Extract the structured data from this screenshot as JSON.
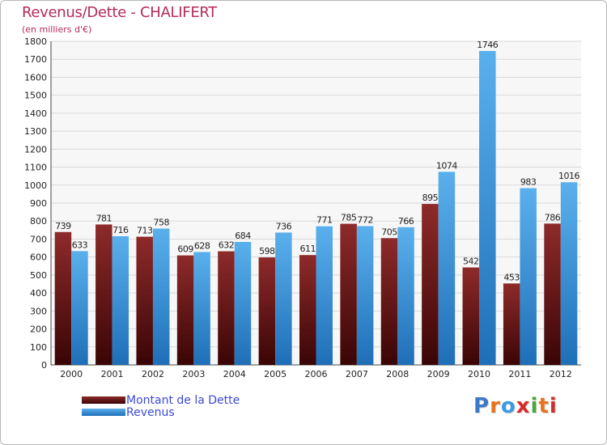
{
  "chart_data": {
    "type": "bar",
    "title": "Revenus/Dette - CHALIFERT",
    "subtitle": "(en milliers d'€)",
    "categories": [
      "2000",
      "2001",
      "2002",
      "2003",
      "2004",
      "2005",
      "2006",
      "2007",
      "2008",
      "2009",
      "2010",
      "2011",
      "2012"
    ],
    "series": [
      {
        "name": "Montant de la Dette",
        "color": "#7a1b1b",
        "values": [
          739,
          781,
          713,
          609,
          632,
          598,
          611,
          785,
          705,
          895,
          542,
          453,
          786
        ]
      },
      {
        "name": "Revenus",
        "color": "#3a9be0",
        "values": [
          633,
          716,
          758,
          628,
          684,
          736,
          771,
          772,
          766,
          1074,
          1746,
          983,
          1016
        ]
      }
    ],
    "ylim": [
      0,
      1800
    ],
    "ytick_step": 100,
    "grid": true,
    "legend_position": "bottom-left"
  },
  "branding": {
    "letters": [
      {
        "char": "P",
        "color": "#3a78c8"
      },
      {
        "char": "r",
        "color": "#e8731f"
      },
      {
        "char": "o",
        "color": "#3a9be0"
      },
      {
        "char": "x",
        "color": "#d62b2b"
      },
      {
        "char": "i",
        "color": "#4aa83a"
      },
      {
        "char": "t",
        "color": "#e8731f"
      },
      {
        "char": "i",
        "color": "#d62b2b"
      }
    ]
  }
}
